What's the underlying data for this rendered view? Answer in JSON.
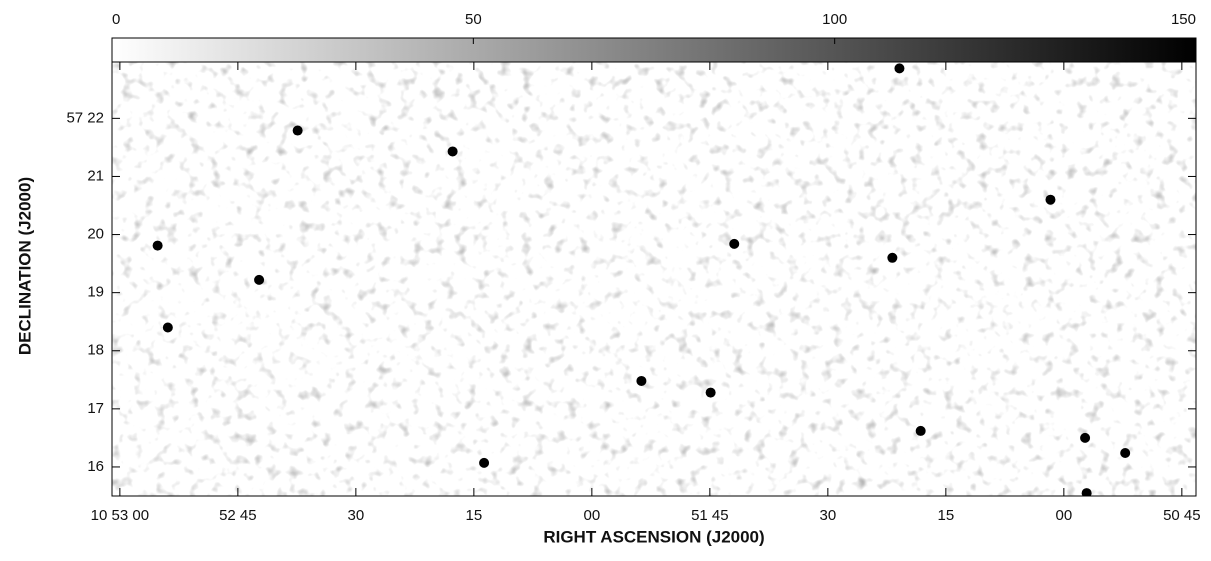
{
  "chart_data": {
    "type": "scatter",
    "xlabel": "RIGHT ASCENSION (J2000)",
    "ylabel": "DECLINATION (J2000)",
    "x": [
      175.2,
      162.3,
      137.7,
      157.4,
      101.9,
      61.7,
      133.7,
      113.7,
      78.2,
      57.3,
      57.1,
      81.8,
      80.9,
      173.9,
      104.9,
      52.2
    ],
    "values": [
      19.81,
      19.22,
      21.43,
      21.79,
      19.84,
      20.6,
      16.07,
      17.48,
      16.62,
      16.5,
      15.55,
      19.6,
      22.86,
      18.4,
      17.28,
      16.24
    ],
    "color": "#000000",
    "xlim": [
      181,
      43.2
    ],
    "xticks": [
      {
        "value": 180,
        "label": "10 53 00"
      },
      {
        "value": 165,
        "label": "52 45"
      },
      {
        "value": 150,
        "label": "30"
      },
      {
        "value": 135,
        "label": "15"
      },
      {
        "value": 120,
        "label": "00"
      },
      {
        "value": 105,
        "label": "51 45"
      },
      {
        "value": 90,
        "label": "30"
      },
      {
        "value": 75,
        "label": "15"
      },
      {
        "value": 60,
        "label": "00"
      },
      {
        "value": 45,
        "label": "50 45"
      }
    ],
    "ylim": [
      15.5,
      22.97
    ],
    "yticks": [
      {
        "value": 22,
        "label": "57 22"
      },
      21,
      20,
      19,
      18,
      17,
      16
    ],
    "colorbar": {
      "lim": [
        0,
        150
      ],
      "ticks": [
        0,
        50,
        100,
        150
      ]
    }
  }
}
